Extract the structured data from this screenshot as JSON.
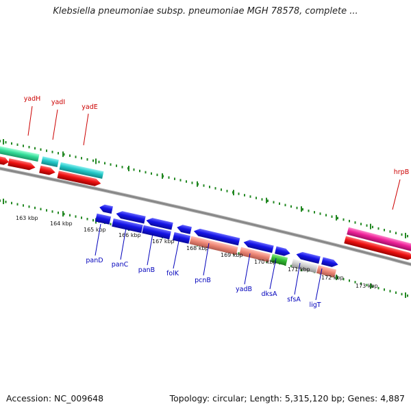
{
  "header": {
    "title": "Klebsiella pneumoniae subsp. pneumoniae MGH 78578, complete ..."
  },
  "footer": {
    "accession": "Accession: NC_009648",
    "topology": "Topology: circular; Length: 5,315,120 bp; Genes: 4,887"
  },
  "scale_ticks": [
    {
      "label": "163 kbp"
    },
    {
      "label": "164 kbp"
    },
    {
      "label": "165 kbp"
    },
    {
      "label": "166 kbp"
    },
    {
      "label": "167 kbp"
    },
    {
      "label": "168 kbp"
    },
    {
      "label": "169 kbp"
    },
    {
      "label": "170 kbp"
    },
    {
      "label": "171 kbp"
    },
    {
      "label": "172 kbp"
    },
    {
      "label": "173 kbp"
    }
  ],
  "genes_top": [
    {
      "name": "yadH"
    },
    {
      "name": "yadI"
    },
    {
      "name": "yadE"
    },
    {
      "name": "hrpB"
    }
  ],
  "genes_bottom": [
    {
      "name": "panD"
    },
    {
      "name": "panC"
    },
    {
      "name": "panB"
    },
    {
      "name": "folK"
    },
    {
      "name": "pcnB"
    },
    {
      "name": "yadB"
    },
    {
      "name": "dksA"
    },
    {
      "name": "sfsA"
    },
    {
      "name": "ligT"
    }
  ],
  "colors": {
    "top_label": "#cc0000",
    "bottom_label": "#0000bb",
    "gene_blue": "#1010e0",
    "gene_red": "#ee1111",
    "gene_teal": "#20c8c8",
    "gene_mint": "#33dd99",
    "gene_pink": "#ee2299",
    "gene_salmon": "#ee8877",
    "gene_green": "#33bb33",
    "gene_gray": "#cccccc",
    "tick_green": "#228822",
    "backbone": "#888888"
  }
}
